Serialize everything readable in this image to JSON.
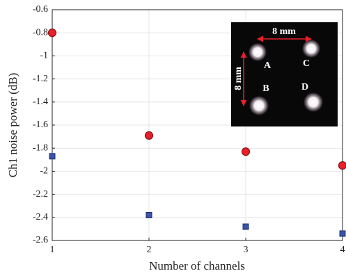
{
  "chart_data": {
    "type": "scatter",
    "xlabel": "Number of channels",
    "ylabel": "Ch1 noise power (dB)",
    "x": [
      1,
      2,
      3,
      4
    ],
    "series": [
      {
        "color": "#e8202a",
        "marker": "circle",
        "values": [
          -0.8,
          -1.69,
          -1.83,
          -1.95
        ]
      },
      {
        "color": "#3a55a8",
        "marker": "square",
        "values": [
          -1.87,
          -2.38,
          -2.48,
          -2.54
        ]
      }
    ],
    "xlim": [
      1,
      4
    ],
    "xticks": [
      1,
      2,
      3,
      4
    ],
    "ylim": [
      -2.6,
      -0.6
    ],
    "yticks": [
      -2.6,
      -2.4,
      -2.2,
      -2,
      -1.8,
      -1.6,
      -1.4,
      -1.2,
      -1,
      -0.8,
      -0.6
    ],
    "grid": true,
    "annotations": [
      "8 mm",
      "8 mm",
      "A",
      "C",
      "B",
      "D"
    ]
  }
}
